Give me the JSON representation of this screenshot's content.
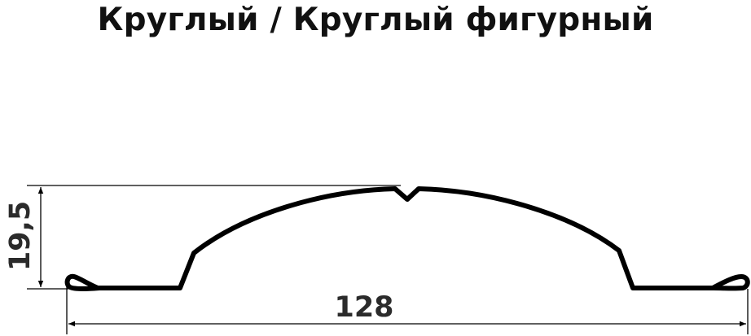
{
  "title": "Круглый / Круглый фигурный",
  "dimensions": {
    "height_label": "19,5",
    "width_label": "128"
  }
}
